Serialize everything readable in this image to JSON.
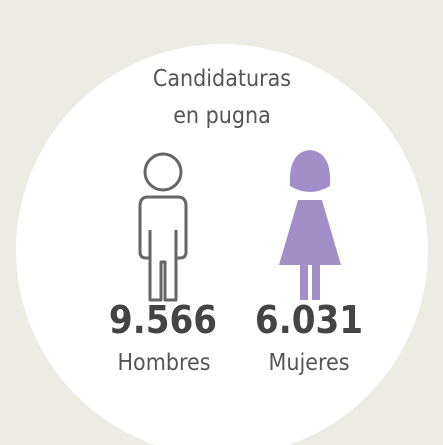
{
  "title_lines": [
    "Candidaturas",
    "en pugna"
  ],
  "groups": [
    {
      "value": "9.566",
      "label": "Hombres"
    },
    {
      "value": "6.031",
      "label": "Mujeres"
    }
  ]
}
